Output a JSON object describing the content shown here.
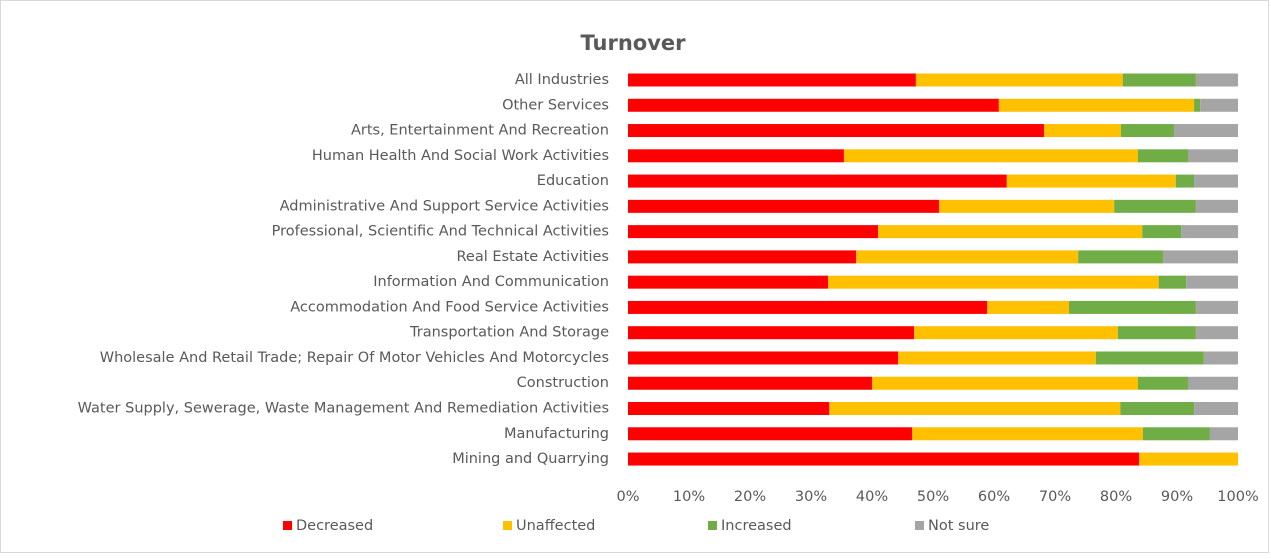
{
  "chart_data": {
    "type": "stacked-barh",
    "title": "Turnover",
    "categories": [
      "All Industries",
      "Other Services",
      "Arts, Entertainment And Recreation",
      "Human Health And Social Work Activities",
      "Education",
      "Administrative And Support Service Activities",
      "Professional, Scientific And Technical Activities",
      "Real Estate Activities",
      "Information And Communication",
      "Accommodation And Food Service Activities",
      "Transportation And Storage",
      "Wholesale And Retail Trade; Repair Of Motor Vehicles And Motorcycles",
      "Construction",
      "Water Supply, Sewerage, Waste Management And Remediation Activities",
      "Manufacturing",
      "Mining and Quarrying"
    ],
    "series": [
      {
        "name": "Decreased",
        "color": "#ff0000",
        "values": [
          47.2,
          60.8,
          68.2,
          35.4,
          62.1,
          51.0,
          41.0,
          37.4,
          32.8,
          58.9,
          46.9,
          44.3,
          40.0,
          33.0,
          46.6,
          83.8
        ]
      },
      {
        "name": "Unaffected",
        "color": "#ffc000",
        "values": [
          33.9,
          32.0,
          12.6,
          48.2,
          27.7,
          28.7,
          43.3,
          36.4,
          54.2,
          13.4,
          33.4,
          32.4,
          43.6,
          47.7,
          37.8,
          16.2
        ]
      },
      {
        "name": "Increased",
        "color": "#70ad47",
        "values": [
          12.0,
          1.0,
          8.7,
          8.2,
          3.0,
          13.4,
          6.4,
          13.9,
          4.5,
          20.8,
          12.8,
          17.7,
          8.2,
          12.1,
          11.0,
          0
        ]
      },
      {
        "name": "Not sure",
        "color": "#a5a5a5",
        "values": [
          6.9,
          6.2,
          10.5,
          8.2,
          7.2,
          6.9,
          9.3,
          12.3,
          8.5,
          6.9,
          6.9,
          5.6,
          8.2,
          7.2,
          4.6,
          0
        ]
      }
    ],
    "xlim": [
      0,
      100
    ],
    "xticks": [
      {
        "value": 0,
        "label": "0%"
      },
      {
        "value": 10,
        "label": "10%"
      },
      {
        "value": 20,
        "label": "20%"
      },
      {
        "value": 30,
        "label": "30%"
      },
      {
        "value": 40,
        "label": "40%"
      },
      {
        "value": 50,
        "label": "50%"
      },
      {
        "value": 60,
        "label": "60%"
      },
      {
        "value": 70,
        "label": "70%"
      },
      {
        "value": 80,
        "label": "80%"
      },
      {
        "value": 90,
        "label": "90%"
      },
      {
        "value": 100,
        "label": "100%"
      }
    ],
    "legend": "bottom"
  }
}
